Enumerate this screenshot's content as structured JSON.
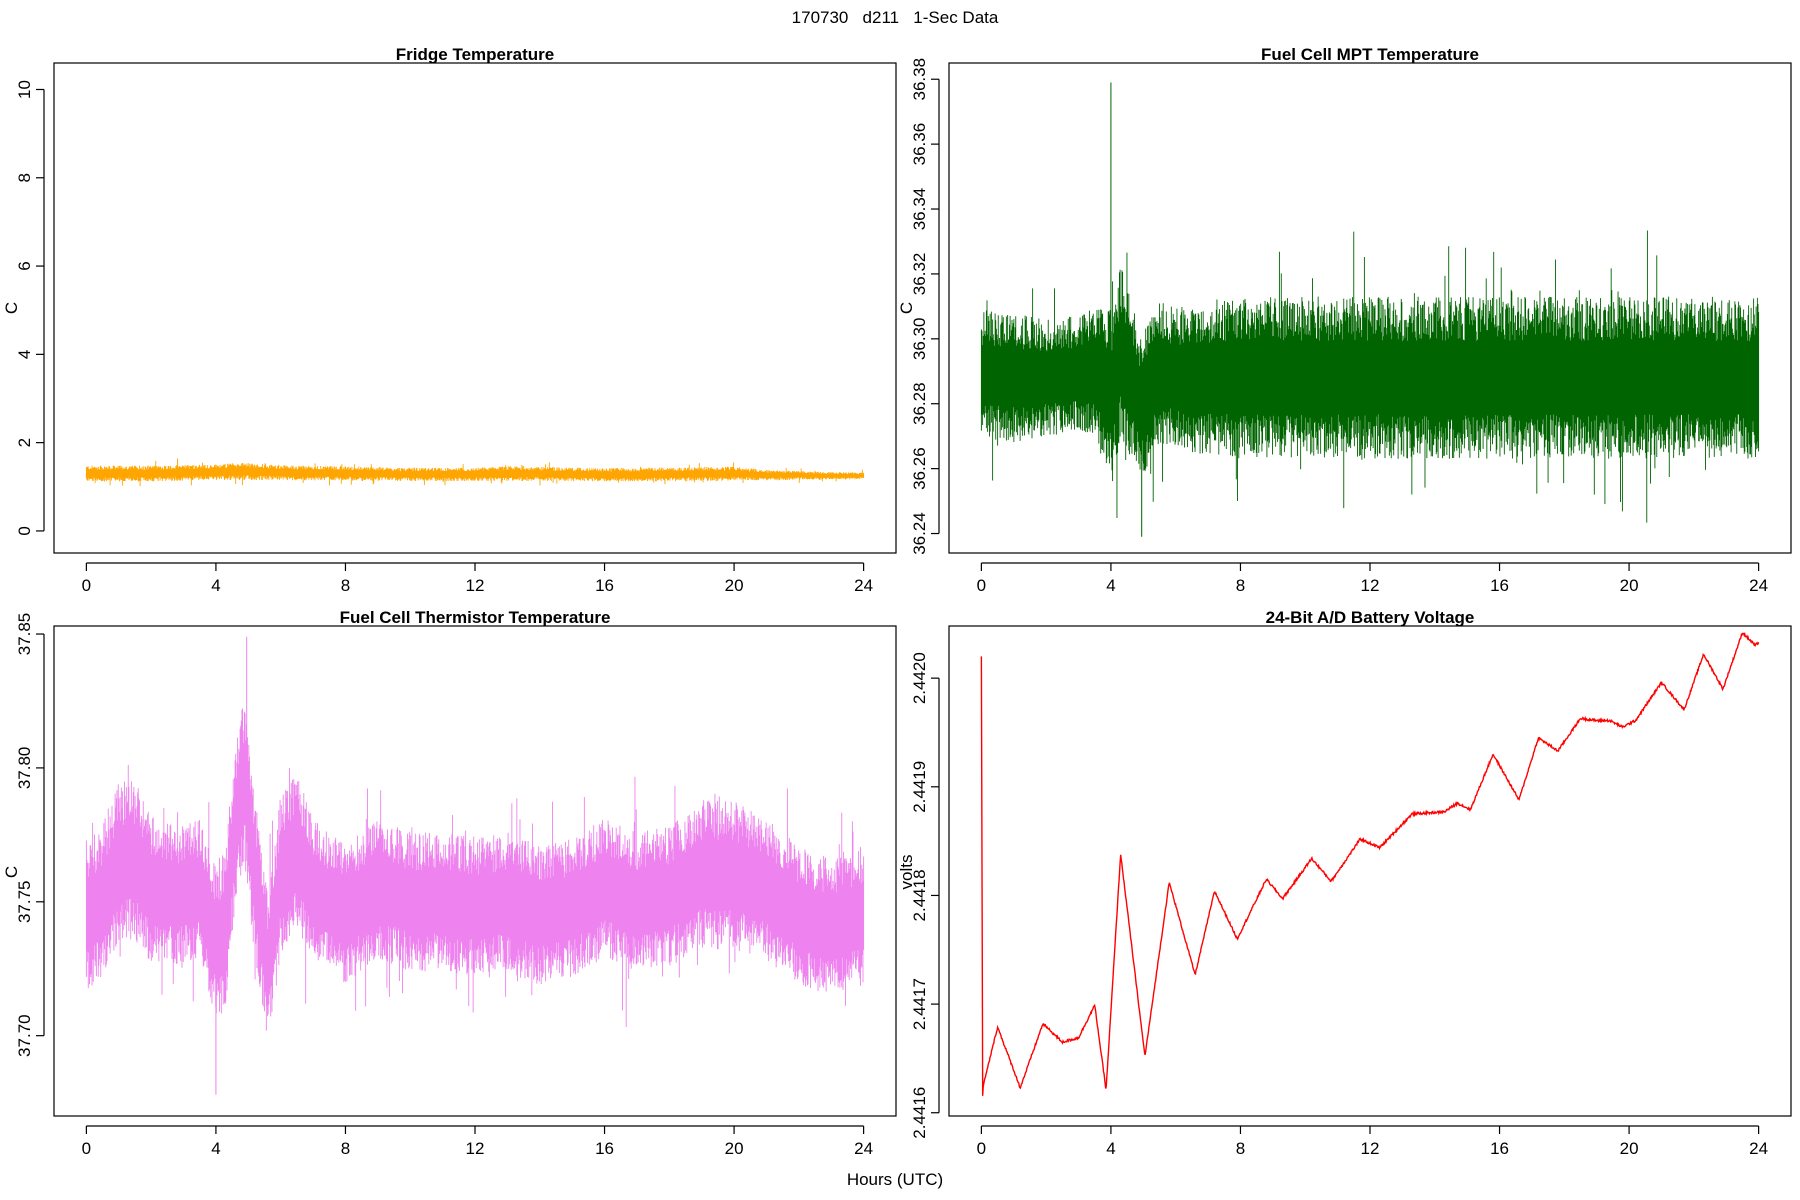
{
  "figure": {
    "suptitle": "170730   d211   1-Sec Data",
    "xlabel": "Hours (UTC)"
  },
  "chart_data": [
    {
      "type": "line",
      "title": "Fridge Temperature",
      "ylabel": "C",
      "xlabel": "",
      "color": "#FFA500",
      "xlim": [
        -1,
        25
      ],
      "ylim": [
        -0.5,
        10.6
      ],
      "xticks": [
        0,
        4,
        8,
        12,
        16,
        20,
        24
      ],
      "yticks": [
        0,
        2,
        4,
        6,
        8,
        10
      ],
      "ytick_labels": [
        "0",
        "2",
        "4",
        "6",
        "8",
        "10"
      ],
      "series": [
        {
          "x": [
            0,
            2,
            4,
            4.8,
            6,
            8,
            10,
            12,
            13,
            16,
            18,
            20,
            21,
            22,
            23,
            24
          ],
          "center": [
            1.3,
            1.3,
            1.33,
            1.35,
            1.32,
            1.3,
            1.28,
            1.28,
            1.3,
            1.27,
            1.28,
            1.3,
            1.26,
            1.26,
            1.25,
            1.25
          ],
          "amplitude": [
            0.18,
            0.18,
            0.18,
            0.2,
            0.17,
            0.16,
            0.15,
            0.15,
            0.17,
            0.15,
            0.16,
            0.16,
            0.12,
            0.1,
            0.08,
            0.08
          ]
        }
      ]
    },
    {
      "type": "line",
      "title": "Fuel Cell MPT Temperature",
      "ylabel": "C",
      "xlabel": "",
      "color": "#006400",
      "xlim": [
        -1,
        25
      ],
      "ylim": [
        36.234,
        36.385
      ],
      "xticks": [
        0,
        4,
        8,
        12,
        16,
        20,
        24
      ],
      "yticks": [
        36.24,
        36.26,
        36.28,
        36.3,
        36.32,
        36.34,
        36.36,
        36.38
      ],
      "ytick_labels": [
        "36.24",
        "36.26",
        "36.28",
        "36.30",
        "36.32",
        "36.34",
        "36.36",
        "36.38"
      ],
      "series": [
        {
          "x": [
            0,
            1,
            2,
            3,
            3.5,
            3.8,
            4,
            4.3,
            4.6,
            4.9,
            5.2,
            5.5,
            6,
            7,
            8,
            12,
            16,
            20,
            24
          ],
          "center": [
            36.289,
            36.288,
            36.288,
            36.289,
            36.29,
            36.285,
            36.283,
            36.295,
            36.29,
            36.28,
            36.284,
            36.29,
            36.288,
            36.288,
            36.288,
            36.288,
            36.288,
            36.288,
            36.288
          ],
          "amplitude": [
            0.02,
            0.02,
            0.018,
            0.018,
            0.02,
            0.024,
            0.026,
            0.028,
            0.026,
            0.024,
            0.022,
            0.022,
            0.022,
            0.024,
            0.025,
            0.025,
            0.025,
            0.025,
            0.025
          ],
          "peak_max": 36.379,
          "peak_min": 36.239
        }
      ]
    },
    {
      "type": "line",
      "title": "Fuel Cell Thermistor Temperature",
      "ylabel": "C",
      "xlabel": "",
      "color": "#EE82EE",
      "xlim": [
        -1,
        25
      ],
      "ylim": [
        37.67,
        37.853
      ],
      "xticks": [
        0,
        4,
        8,
        12,
        16,
        20,
        24
      ],
      "yticks": [
        37.7,
        37.75,
        37.8,
        37.85
      ],
      "ytick_labels": [
        "37.70",
        "37.75",
        "37.80",
        "37.85"
      ],
      "series": [
        {
          "x": [
            0,
            0.5,
            1,
            1.5,
            2,
            2.8,
            3.5,
            4,
            4.3,
            4.6,
            4.9,
            5.2,
            5.6,
            6,
            6.5,
            7,
            7.5,
            8,
            9,
            10,
            11,
            12,
            13,
            14,
            15,
            16,
            17,
            18,
            19,
            20,
            21,
            22,
            23,
            24
          ],
          "center": [
            37.745,
            37.75,
            37.765,
            37.765,
            37.755,
            37.752,
            37.755,
            37.735,
            37.74,
            37.78,
            37.795,
            37.76,
            37.725,
            37.76,
            37.77,
            37.755,
            37.75,
            37.745,
            37.755,
            37.75,
            37.75,
            37.748,
            37.75,
            37.745,
            37.748,
            37.755,
            37.75,
            37.752,
            37.76,
            37.76,
            37.755,
            37.745,
            37.74,
            37.745
          ],
          "amplitude": [
            0.028,
            0.03,
            0.03,
            0.03,
            0.028,
            0.026,
            0.026,
            0.03,
            0.03,
            0.03,
            0.034,
            0.032,
            0.028,
            0.032,
            0.03,
            0.027,
            0.026,
            0.026,
            0.026,
            0.026,
            0.026,
            0.026,
            0.026,
            0.026,
            0.026,
            0.026,
            0.026,
            0.026,
            0.028,
            0.028,
            0.027,
            0.026,
            0.026,
            0.026
          ],
          "peak_max": 37.849,
          "peak_min": 37.678
        }
      ]
    },
    {
      "type": "line",
      "title": "24-Bit A/D Battery Voltage",
      "ylabel": "volts",
      "xlabel": "",
      "color": "#FF0000",
      "xlim": [
        -1,
        25
      ],
      "ylim": [
        2.441597,
        2.442048
      ],
      "xticks": [
        0,
        4,
        8,
        12,
        16,
        20,
        24
      ],
      "yticks": [
        2.4416,
        2.4417,
        2.4418,
        2.4419,
        2.442
      ],
      "ytick_labels": [
        "2.4416",
        "2.4417",
        "2.4418",
        "2.4419",
        "2.4420"
      ],
      "series": [
        {
          "x": [
            0,
            0.04,
            0.06,
            0.1,
            0.5,
            1.2,
            1.9,
            2.5,
            3.0,
            3.5,
            3.85,
            4.3,
            5.05,
            5.8,
            6.6,
            7.2,
            7.9,
            8.8,
            9.3,
            10.2,
            10.8,
            11.7,
            12.3,
            13.3,
            14.3,
            14.7,
            15.1,
            15.8,
            16.6,
            17.2,
            17.8,
            18.5,
            19.0,
            19.4,
            19.8,
            20.2,
            21.0,
            21.7,
            22.3,
            22.9,
            23.5,
            23.9,
            24.0
          ],
          "y": [
            2.44202,
            2.441615,
            2.441625,
            2.44163,
            2.441679,
            2.441623,
            2.441682,
            2.441665,
            2.441669,
            2.441699,
            2.441621,
            2.441838,
            2.441652,
            2.441812,
            2.441727,
            2.441804,
            2.44176,
            2.441815,
            2.441797,
            2.441834,
            2.441813,
            2.441852,
            2.441844,
            2.441875,
            2.441877,
            2.441885,
            2.441879,
            2.44193,
            2.441888,
            2.441945,
            2.441933,
            2.441963,
            2.441961,
            2.441961,
            2.441955,
            2.441961,
            2.441996,
            2.441971,
            2.442022,
            2.44199,
            2.442042,
            2.44203,
            2.442033
          ]
        }
      ]
    }
  ]
}
